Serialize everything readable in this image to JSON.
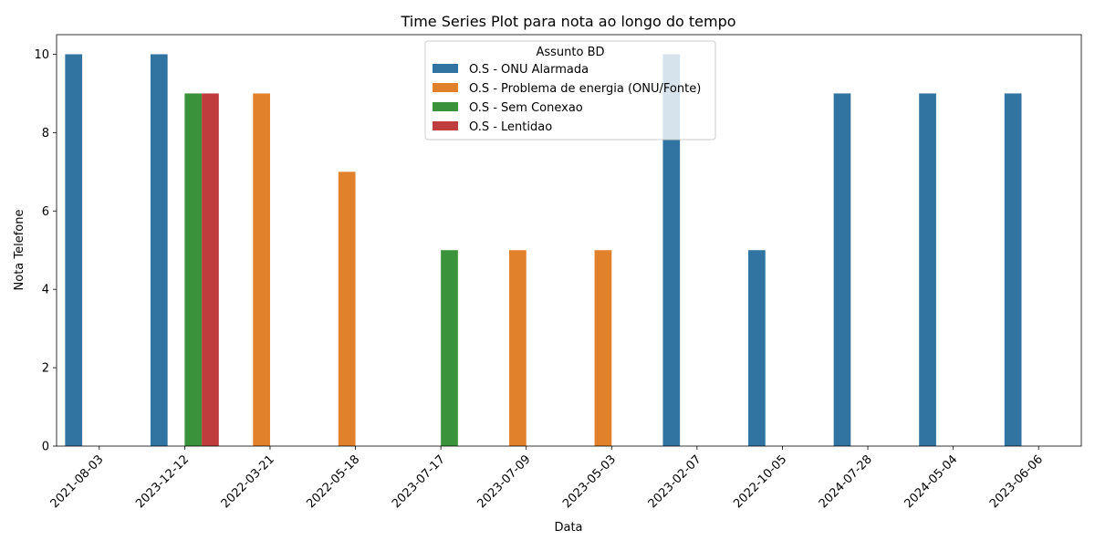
{
  "chart_data": {
    "type": "bar",
    "title": "Time Series Plot para nota ao longo do tempo",
    "xlabel": "Data",
    "ylabel": "Nota Telefone",
    "ylim": [
      0,
      10.5
    ],
    "yticks": [
      0,
      2,
      4,
      6,
      8,
      10
    ],
    "categories": [
      "2021-08-03",
      "2023-12-12",
      "2022-03-21",
      "2022-05-18",
      "2023-07-17",
      "2023-07-09",
      "2023-05-03",
      "2023-02-07",
      "2022-10-05",
      "2024-07-28",
      "2024-05-04",
      "2023-06-06"
    ],
    "legend": {
      "title": "Assunto BD",
      "placement": "upper center"
    },
    "series": [
      {
        "name": "O.S - ONU Alarmada",
        "color": "#3274a1",
        "values": [
          10,
          10,
          null,
          null,
          null,
          null,
          null,
          10,
          5,
          9,
          9,
          9
        ]
      },
      {
        "name": "O.S - Problema de energia (ONU/Fonte)",
        "color": "#e1812c",
        "values": [
          null,
          null,
          9,
          7,
          null,
          5,
          5,
          null,
          null,
          null,
          null,
          null
        ]
      },
      {
        "name": "O.S - Sem Conexao",
        "color": "#3a923a",
        "values": [
          null,
          9,
          null,
          null,
          5,
          null,
          null,
          null,
          null,
          null,
          null,
          null
        ]
      },
      {
        "name": "O.S - Lentidao",
        "color": "#c03d3e",
        "values": [
          null,
          9,
          null,
          null,
          null,
          null,
          null,
          null,
          null,
          null,
          null,
          null
        ]
      }
    ]
  }
}
